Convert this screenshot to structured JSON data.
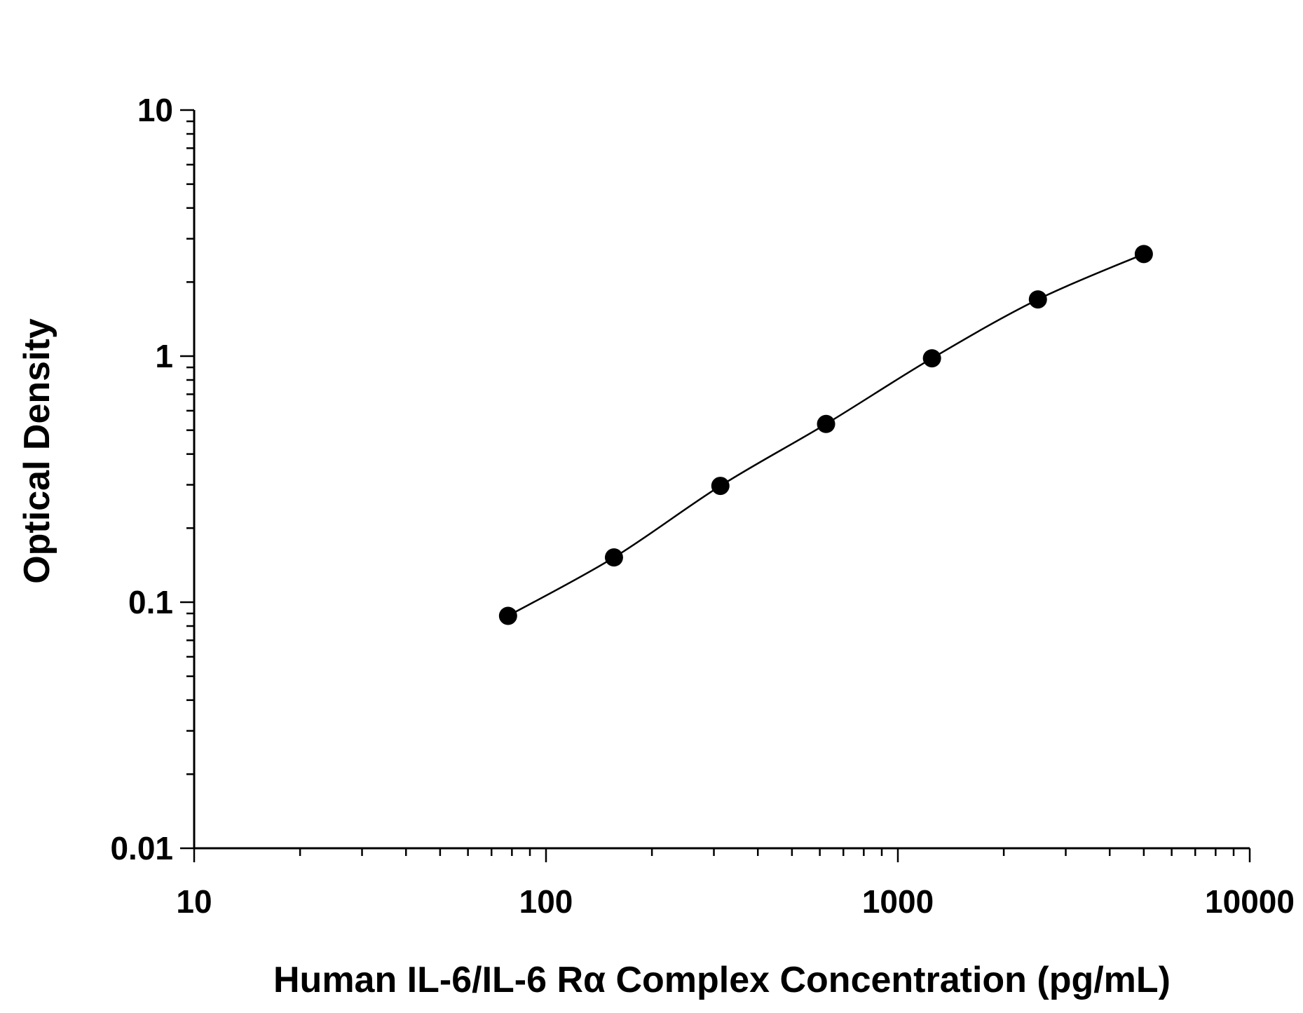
{
  "chart_data": {
    "type": "scatter",
    "xlabel": "Human IL-6/IL-6 Rα Complex Concentration (pg/mL)",
    "ylabel": "Optical Density",
    "x_scale": "log",
    "y_scale": "log",
    "xlim": [
      10,
      10000
    ],
    "ylim": [
      0.01,
      10
    ],
    "x_ticks": [
      "10",
      "100",
      "1000",
      "10000"
    ],
    "y_ticks": [
      "0.01",
      "0.1",
      "1",
      "10"
    ],
    "grid": false,
    "series": [
      {
        "x": [
          78,
          156,
          313,
          625,
          1250,
          2500,
          5000
        ],
        "y": [
          0.088,
          0.152,
          0.297,
          0.53,
          0.98,
          1.7,
          2.6
        ],
        "fit_curve": true
      }
    ],
    "colors": {
      "marker": "#000000",
      "line": "#000000",
      "axis": "#000000"
    }
  }
}
